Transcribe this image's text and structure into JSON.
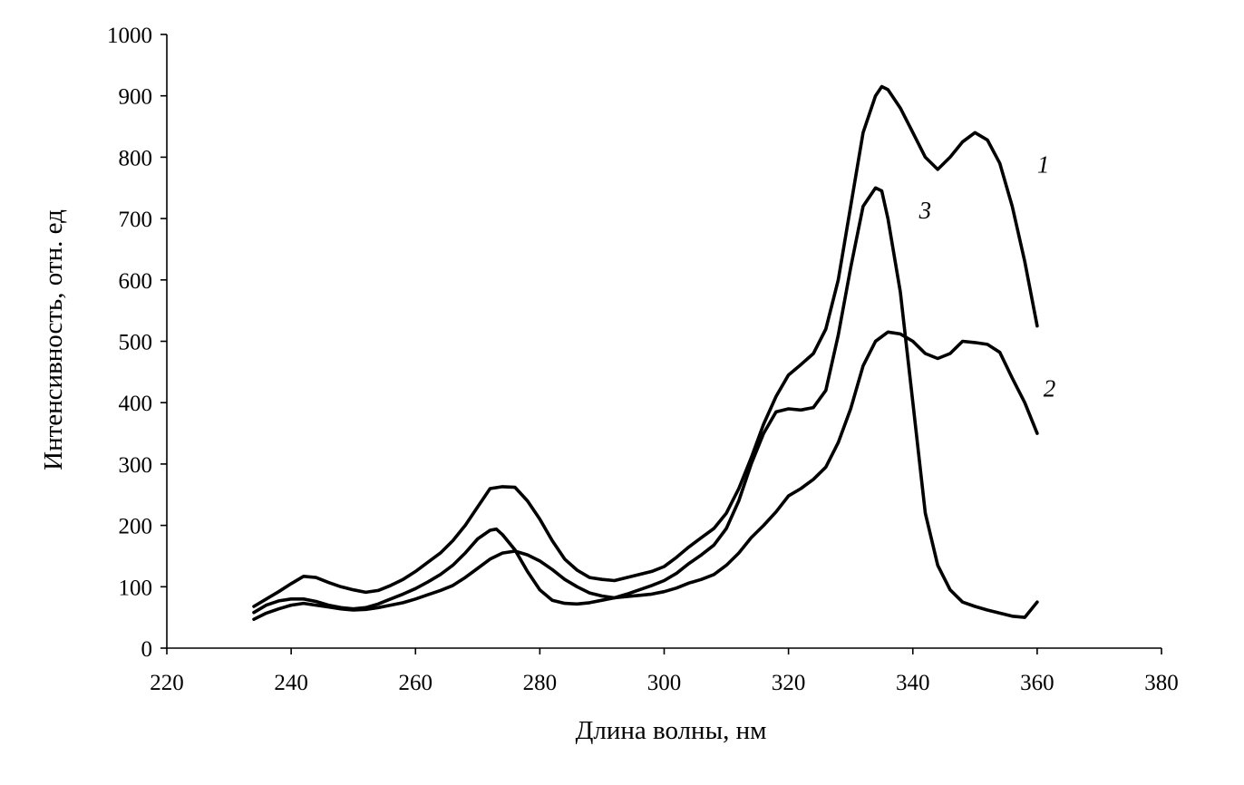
{
  "chart_data": {
    "type": "line",
    "title": "",
    "xlabel": "Длина волны, нм",
    "ylabel": "Интенсивность, отн. ед",
    "xlim": [
      220,
      380
    ],
    "ylim": [
      0,
      1000
    ],
    "xticks": [
      220,
      240,
      260,
      280,
      300,
      320,
      340,
      360,
      380
    ],
    "yticks": [
      0,
      100,
      200,
      300,
      400,
      500,
      600,
      700,
      800,
      900,
      1000
    ],
    "grid": false,
    "legend": "none",
    "series": [
      {
        "name": "1",
        "label_at": [
          360,
          775
        ],
        "points": [
          [
            234,
            68
          ],
          [
            236,
            80
          ],
          [
            238,
            92
          ],
          [
            240,
            105
          ],
          [
            242,
            117
          ],
          [
            244,
            115
          ],
          [
            246,
            107
          ],
          [
            248,
            100
          ],
          [
            250,
            95
          ],
          [
            252,
            91
          ],
          [
            254,
            94
          ],
          [
            256,
            102
          ],
          [
            258,
            112
          ],
          [
            260,
            125
          ],
          [
            262,
            140
          ],
          [
            264,
            155
          ],
          [
            266,
            175
          ],
          [
            268,
            200
          ],
          [
            270,
            230
          ],
          [
            272,
            260
          ],
          [
            274,
            263
          ],
          [
            276,
            262
          ],
          [
            278,
            240
          ],
          [
            280,
            210
          ],
          [
            282,
            175
          ],
          [
            284,
            145
          ],
          [
            286,
            127
          ],
          [
            288,
            115
          ],
          [
            290,
            112
          ],
          [
            292,
            110
          ],
          [
            294,
            115
          ],
          [
            296,
            120
          ],
          [
            298,
            125
          ],
          [
            300,
            133
          ],
          [
            302,
            148
          ],
          [
            304,
            165
          ],
          [
            306,
            180
          ],
          [
            308,
            195
          ],
          [
            310,
            220
          ],
          [
            312,
            260
          ],
          [
            314,
            310
          ],
          [
            316,
            365
          ],
          [
            318,
            410
          ],
          [
            320,
            445
          ],
          [
            322,
            462
          ],
          [
            324,
            480
          ],
          [
            326,
            520
          ],
          [
            328,
            600
          ],
          [
            330,
            720
          ],
          [
            332,
            840
          ],
          [
            334,
            900
          ],
          [
            335,
            915
          ],
          [
            336,
            910
          ],
          [
            338,
            880
          ],
          [
            340,
            840
          ],
          [
            342,
            800
          ],
          [
            344,
            780
          ],
          [
            346,
            800
          ],
          [
            348,
            825
          ],
          [
            350,
            840
          ],
          [
            352,
            828
          ],
          [
            354,
            790
          ],
          [
            356,
            720
          ],
          [
            358,
            630
          ],
          [
            360,
            525
          ]
        ]
      },
      {
        "name": "2",
        "label_at": [
          361,
          410
        ],
        "points": [
          [
            234,
            47
          ],
          [
            236,
            57
          ],
          [
            238,
            64
          ],
          [
            240,
            70
          ],
          [
            242,
            73
          ],
          [
            244,
            70
          ],
          [
            246,
            67
          ],
          [
            248,
            64
          ],
          [
            250,
            62
          ],
          [
            252,
            63
          ],
          [
            254,
            66
          ],
          [
            256,
            70
          ],
          [
            258,
            74
          ],
          [
            260,
            80
          ],
          [
            262,
            87
          ],
          [
            264,
            94
          ],
          [
            266,
            102
          ],
          [
            268,
            115
          ],
          [
            270,
            130
          ],
          [
            272,
            145
          ],
          [
            274,
            155
          ],
          [
            276,
            158
          ],
          [
            278,
            152
          ],
          [
            280,
            142
          ],
          [
            282,
            128
          ],
          [
            284,
            112
          ],
          [
            286,
            100
          ],
          [
            288,
            90
          ],
          [
            290,
            85
          ],
          [
            292,
            82
          ],
          [
            294,
            84
          ],
          [
            296,
            86
          ],
          [
            298,
            88
          ],
          [
            300,
            92
          ],
          [
            302,
            98
          ],
          [
            304,
            106
          ],
          [
            306,
            112
          ],
          [
            308,
            120
          ],
          [
            310,
            135
          ],
          [
            312,
            155
          ],
          [
            314,
            180
          ],
          [
            316,
            200
          ],
          [
            318,
            222
          ],
          [
            320,
            248
          ],
          [
            322,
            260
          ],
          [
            324,
            275
          ],
          [
            326,
            295
          ],
          [
            328,
            335
          ],
          [
            330,
            390
          ],
          [
            332,
            460
          ],
          [
            334,
            500
          ],
          [
            336,
            515
          ],
          [
            338,
            512
          ],
          [
            340,
            500
          ],
          [
            342,
            480
          ],
          [
            344,
            472
          ],
          [
            346,
            480
          ],
          [
            348,
            500
          ],
          [
            350,
            498
          ],
          [
            352,
            495
          ],
          [
            354,
            482
          ],
          [
            356,
            440
          ],
          [
            358,
            400
          ],
          [
            360,
            350
          ]
        ]
      },
      {
        "name": "3",
        "label_at": [
          341,
          700
        ],
        "points": [
          [
            234,
            58
          ],
          [
            236,
            70
          ],
          [
            238,
            77
          ],
          [
            240,
            80
          ],
          [
            242,
            80
          ],
          [
            244,
            76
          ],
          [
            246,
            70
          ],
          [
            248,
            66
          ],
          [
            250,
            64
          ],
          [
            252,
            66
          ],
          [
            254,
            72
          ],
          [
            256,
            80
          ],
          [
            258,
            88
          ],
          [
            260,
            97
          ],
          [
            262,
            108
          ],
          [
            264,
            120
          ],
          [
            266,
            135
          ],
          [
            268,
            155
          ],
          [
            270,
            178
          ],
          [
            272,
            192
          ],
          [
            273,
            194
          ],
          [
            274,
            185
          ],
          [
            276,
            160
          ],
          [
            278,
            125
          ],
          [
            280,
            95
          ],
          [
            282,
            78
          ],
          [
            284,
            73
          ],
          [
            286,
            72
          ],
          [
            288,
            74
          ],
          [
            290,
            78
          ],
          [
            292,
            82
          ],
          [
            294,
            88
          ],
          [
            296,
            95
          ],
          [
            298,
            102
          ],
          [
            300,
            110
          ],
          [
            302,
            122
          ],
          [
            304,
            138
          ],
          [
            306,
            152
          ],
          [
            308,
            168
          ],
          [
            310,
            195
          ],
          [
            312,
            240
          ],
          [
            314,
            300
          ],
          [
            316,
            350
          ],
          [
            318,
            385
          ],
          [
            320,
            390
          ],
          [
            322,
            388
          ],
          [
            324,
            392
          ],
          [
            326,
            420
          ],
          [
            328,
            510
          ],
          [
            330,
            620
          ],
          [
            332,
            720
          ],
          [
            334,
            750
          ],
          [
            335,
            745
          ],
          [
            336,
            700
          ],
          [
            338,
            580
          ],
          [
            340,
            400
          ],
          [
            342,
            220
          ],
          [
            344,
            135
          ],
          [
            346,
            95
          ],
          [
            348,
            75
          ],
          [
            350,
            68
          ],
          [
            352,
            62
          ],
          [
            354,
            57
          ],
          [
            356,
            52
          ],
          [
            358,
            50
          ],
          [
            360,
            75
          ]
        ]
      }
    ]
  }
}
